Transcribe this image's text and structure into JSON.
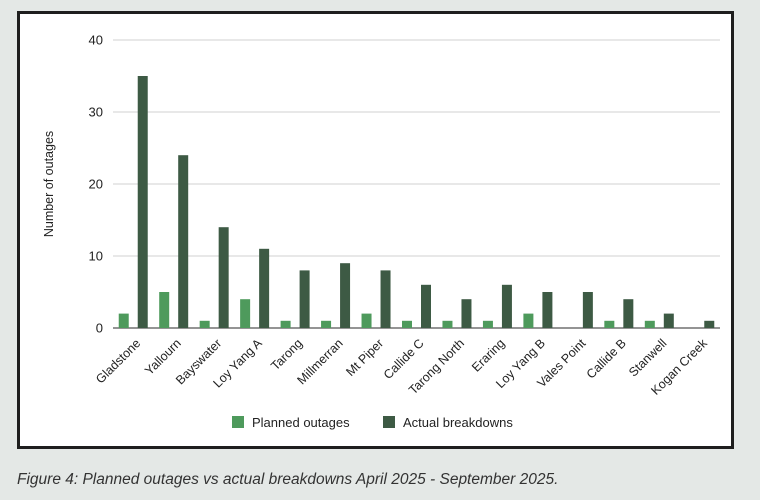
{
  "caption": "Figure 4: Planned outages vs actual breakdowns April 2025 - September 2025.",
  "chart_data": {
    "type": "bar",
    "title": "",
    "xlabel": "",
    "ylabel": "Number of outages",
    "ylim": [
      0,
      40
    ],
    "yticks": [
      0,
      10,
      20,
      30,
      40
    ],
    "grid": true,
    "legend_position": "bottom",
    "categories": [
      "Gladstone",
      "Yallourn",
      "Bayswater",
      "Loy Yang A",
      "Tarong",
      "Millmerran",
      "Mt Piper",
      "Callide C",
      "Tarong North",
      "Eraring",
      "Loy Yang B",
      "Vales Point",
      "Callide B",
      "Stanwell",
      "Kogan Creek"
    ],
    "series": [
      {
        "name": "Planned outages",
        "color": "#4e9a5c",
        "values": [
          2,
          5,
          1,
          4,
          1,
          1,
          2,
          1,
          1,
          1,
          2,
          0,
          1,
          1,
          0
        ]
      },
      {
        "name": "Actual breakdowns",
        "color": "#3d5a44",
        "values": [
          35,
          24,
          14,
          11,
          8,
          9,
          8,
          6,
          4,
          6,
          5,
          5,
          4,
          2,
          1
        ]
      }
    ]
  }
}
